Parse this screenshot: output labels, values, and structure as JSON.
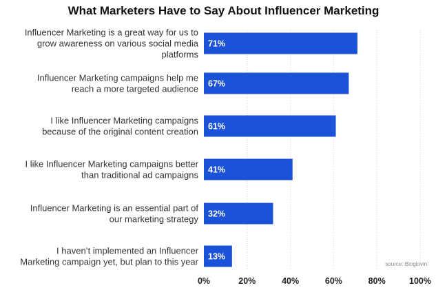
{
  "chart_data": {
    "type": "bar",
    "orientation": "horizontal",
    "title": "What Marketers Have to Say About Influencer Marketing",
    "categories": [
      [
        "Influencer Marketing is a great way for us to",
        "grow awareness on various social media",
        "platforms"
      ],
      [
        "Influencer Marketing campaigns help me",
        "reach a more targeted audience"
      ],
      [
        "I like Influencer Marketing campaigns",
        "because of the original content creation"
      ],
      [
        "I like Influencer Marketing campaigns better",
        "than traditional ad campaigns"
      ],
      [
        "Influencer Marketing is an essential part of",
        "our marketing strategy"
      ],
      [
        "I haven’t implemented an Influencer",
        "Marketing campaign yet, but plan to this year"
      ]
    ],
    "values": [
      71,
      67,
      61,
      41,
      32,
      13
    ],
    "value_labels": [
      "71%",
      "67%",
      "61%",
      "41%",
      "32%",
      "13%"
    ],
    "xlim": [
      0,
      100
    ],
    "x_ticks": [
      "0%",
      "20%",
      "40%",
      "60%",
      "80%",
      "100%"
    ],
    "grid": "vertical-dotted",
    "bar_color": "#1a53d8",
    "source": "source: Bloglovin’"
  }
}
